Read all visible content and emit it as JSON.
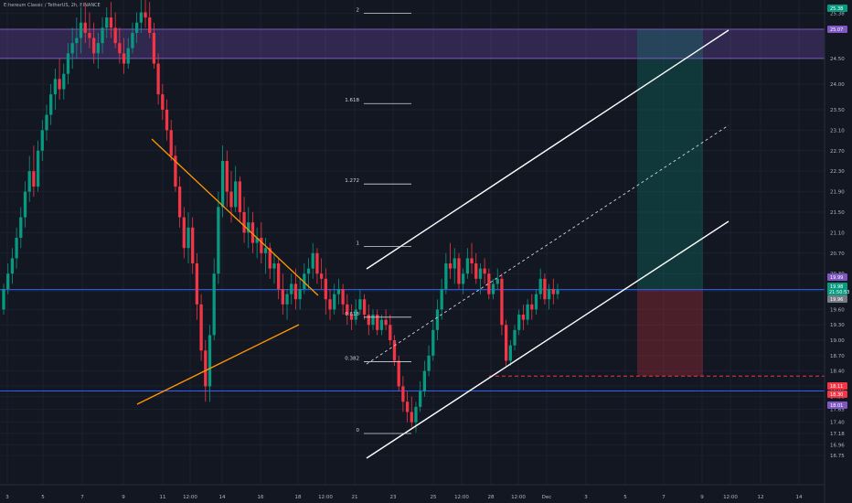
{
  "chart_title": "Ethereum Classic / TetherUS, 2h, BINANCE",
  "currency": "USDT",
  "chart_data": {
    "type": "candlestick",
    "title": "Ethereum Classic / TetherUS, 2h, BINANCE",
    "ylim": [
      16.75,
      25.5
    ],
    "y_ticks": [
      25.38,
      25.07,
      24.5,
      24.0,
      23.5,
      23.1,
      22.7,
      22.3,
      21.9,
      21.5,
      21.1,
      20.7,
      20.3,
      19.99,
      19.98,
      19.96,
      19.6,
      19.3,
      19.0,
      18.7,
      18.4,
      18.11,
      18.01,
      17.9,
      17.65,
      17.4,
      17.18,
      16.96,
      16.75
    ],
    "x_ticks": [
      "3",
      "5",
      "7",
      "9",
      "11",
      "12:00",
      "14",
      "16",
      "18",
      "12:00",
      "21",
      "23",
      "25",
      "12:00",
      "28",
      "12:00",
      "Dec",
      "3",
      "5",
      "7",
      "9",
      "12:00",
      "12",
      "14"
    ],
    "price_badges": [
      {
        "value": "25.38",
        "color": "#089981"
      },
      {
        "value": "25.07",
        "color": "#7e57c2"
      },
      {
        "value": "19.99",
        "color": "#7e57c2"
      },
      {
        "value": "19.98",
        "sub": "21:50:53",
        "color": "#089981"
      },
      {
        "value": "19.96",
        "color": "#787b86"
      },
      {
        "value": "18.11",
        "color": "#f23645"
      },
      {
        "value": "18.30",
        "color": "#f23645"
      },
      {
        "value": "18.01",
        "color": "#7e57c2"
      }
    ],
    "fib_levels": [
      {
        "label": "2",
        "value": 25.38
      },
      {
        "label": "1.618",
        "value": 23.62
      },
      {
        "label": "1.272",
        "value": 22.05
      },
      {
        "label": "1",
        "value": 20.83
      },
      {
        "label": "0.618",
        "value": 19.45
      },
      {
        "label": "0.382",
        "value": 18.58
      },
      {
        "label": "0",
        "value": 17.18
      }
    ],
    "horizontal_lines": [
      {
        "value": 25.07,
        "color": "#7e57c2"
      },
      {
        "value": 24.5,
        "color": "#7e57c2"
      },
      {
        "value": 19.99,
        "color": "#2962ff"
      },
      {
        "value": 18.01,
        "color": "#2962ff"
      },
      {
        "value": 18.3,
        "color": "#f23645",
        "style": "dashed"
      }
    ],
    "purple_zone": [
      24.5,
      25.07
    ],
    "position": {
      "entry": 19.99,
      "target": 25.07,
      "stop": 18.3
    },
    "candles_2h": [
      [
        19.6,
        20.1,
        19.5,
        20.0
      ],
      [
        20.0,
        20.5,
        19.9,
        20.3
      ],
      [
        20.3,
        20.8,
        20.1,
        20.6
      ],
      [
        20.6,
        21.2,
        20.4,
        21.0
      ],
      [
        21.0,
        21.6,
        20.8,
        21.4
      ],
      [
        21.4,
        22.1,
        21.2,
        21.9
      ],
      [
        21.9,
        22.6,
        21.7,
        22.3
      ],
      [
        22.3,
        22.8,
        21.8,
        22.0
      ],
      [
        22.0,
        22.9,
        21.9,
        22.7
      ],
      [
        22.7,
        23.3,
        22.5,
        23.1
      ],
      [
        23.1,
        23.6,
        22.9,
        23.4
      ],
      [
        23.4,
        24.0,
        23.2,
        23.8
      ],
      [
        23.8,
        24.3,
        23.5,
        24.1
      ],
      [
        24.1,
        24.5,
        23.7,
        23.9
      ],
      [
        23.9,
        24.4,
        23.7,
        24.2
      ],
      [
        24.2,
        24.8,
        24.0,
        24.6
      ],
      [
        24.6,
        25.1,
        24.3,
        24.8
      ],
      [
        24.8,
        25.3,
        24.5,
        24.9
      ],
      [
        24.9,
        25.5,
        24.6,
        25.2
      ],
      [
        25.2,
        25.6,
        24.8,
        25.0
      ],
      [
        25.0,
        25.4,
        24.7,
        24.9
      ],
      [
        24.9,
        25.2,
        24.4,
        24.6
      ],
      [
        24.6,
        25.0,
        24.3,
        24.8
      ],
      [
        24.8,
        25.3,
        24.6,
        25.1
      ],
      [
        25.1,
        25.5,
        24.9,
        25.3
      ],
      [
        25.3,
        25.6,
        24.9,
        25.1
      ],
      [
        25.1,
        25.4,
        24.7,
        24.8
      ],
      [
        24.8,
        25.1,
        24.4,
        24.6
      ],
      [
        24.6,
        24.9,
        24.2,
        24.4
      ],
      [
        24.4,
        24.9,
        24.3,
        24.7
      ],
      [
        24.7,
        25.2,
        24.6,
        25.0
      ],
      [
        25.0,
        25.4,
        24.8,
        25.2
      ],
      [
        25.2,
        25.7,
        25.0,
        25.4
      ],
      [
        25.4,
        25.8,
        25.1,
        25.3
      ],
      [
        25.3,
        25.6,
        24.9,
        25.0
      ],
      [
        25.0,
        25.2,
        24.3,
        24.4
      ],
      [
        24.4,
        24.6,
        23.6,
        23.8
      ],
      [
        23.8,
        24.0,
        23.3,
        23.5
      ],
      [
        23.5,
        23.7,
        22.9,
        23.1
      ],
      [
        23.1,
        23.3,
        22.5,
        22.6
      ],
      [
        22.6,
        22.8,
        21.9,
        22.0
      ],
      [
        22.0,
        22.2,
        21.2,
        21.4
      ],
      [
        21.4,
        21.6,
        20.6,
        20.8
      ],
      [
        20.8,
        21.5,
        20.5,
        21.2
      ],
      [
        21.2,
        21.4,
        20.3,
        20.5
      ],
      [
        20.5,
        20.7,
        19.4,
        19.7
      ],
      [
        19.7,
        19.9,
        18.6,
        18.8
      ],
      [
        18.8,
        19.0,
        17.8,
        18.1
      ],
      [
        18.1,
        19.3,
        17.8,
        19.1
      ],
      [
        19.1,
        20.6,
        19.0,
        20.3
      ],
      [
        20.3,
        21.9,
        20.1,
        21.6
      ],
      [
        21.6,
        22.8,
        21.4,
        22.5
      ],
      [
        22.5,
        22.7,
        21.6,
        21.9
      ],
      [
        21.9,
        22.3,
        21.3,
        21.6
      ],
      [
        21.6,
        22.4,
        21.5,
        22.1
      ],
      [
        22.1,
        22.2,
        21.3,
        21.5
      ],
      [
        21.5,
        21.8,
        20.9,
        21.1
      ],
      [
        21.1,
        21.6,
        20.8,
        21.3
      ],
      [
        21.3,
        21.5,
        20.7,
        20.9
      ],
      [
        20.9,
        21.2,
        20.6,
        21.0
      ],
      [
        21.0,
        21.3,
        20.5,
        20.7
      ],
      [
        20.7,
        21.0,
        20.3,
        20.8
      ],
      [
        20.8,
        20.9,
        20.2,
        20.4
      ],
      [
        20.4,
        20.7,
        20.1,
        20.5
      ],
      [
        20.5,
        20.6,
        19.8,
        20.0
      ],
      [
        20.0,
        20.3,
        19.5,
        19.7
      ],
      [
        19.7,
        20.0,
        19.4,
        19.9
      ],
      [
        19.9,
        20.3,
        19.7,
        20.1
      ],
      [
        20.1,
        20.4,
        19.6,
        19.8
      ],
      [
        19.8,
        20.2,
        19.6,
        20.0
      ],
      [
        20.0,
        20.5,
        19.9,
        20.3
      ],
      [
        20.3,
        20.6,
        20.0,
        20.4
      ],
      [
        20.4,
        20.9,
        20.2,
        20.7
      ],
      [
        20.7,
        20.8,
        20.1,
        20.3
      ],
      [
        20.3,
        20.6,
        20.0,
        20.2
      ],
      [
        20.2,
        20.4,
        19.5,
        19.8
      ],
      [
        19.8,
        20.0,
        19.4,
        19.6
      ],
      [
        19.6,
        20.1,
        19.5,
        19.9
      ],
      [
        19.9,
        20.2,
        19.7,
        20.0
      ],
      [
        20.0,
        20.1,
        19.5,
        19.7
      ],
      [
        19.7,
        19.9,
        19.3,
        19.5
      ],
      [
        19.5,
        19.7,
        19.2,
        19.4
      ],
      [
        19.4,
        19.8,
        19.3,
        19.6
      ],
      [
        19.6,
        20.0,
        19.5,
        19.8
      ],
      [
        19.8,
        19.9,
        19.4,
        19.5
      ],
      [
        19.5,
        19.7,
        19.1,
        19.3
      ],
      [
        19.3,
        19.6,
        19.2,
        19.5
      ],
      [
        19.5,
        19.6,
        19.1,
        19.2
      ],
      [
        19.2,
        19.5,
        19.1,
        19.4
      ],
      [
        19.4,
        19.6,
        19.2,
        19.3
      ],
      [
        19.3,
        19.5,
        18.9,
        19.0
      ],
      [
        19.0,
        19.1,
        18.5,
        18.6
      ],
      [
        18.6,
        18.7,
        18.0,
        18.1
      ],
      [
        18.1,
        18.3,
        17.6,
        17.8
      ],
      [
        17.8,
        18.0,
        17.4,
        17.6
      ],
      [
        17.6,
        17.9,
        17.3,
        17.4
      ],
      [
        17.4,
        17.8,
        17.2,
        17.7
      ],
      [
        17.7,
        18.2,
        17.6,
        18.0
      ],
      [
        18.0,
        18.6,
        17.9,
        18.4
      ],
      [
        18.4,
        18.9,
        18.3,
        18.7
      ],
      [
        18.7,
        19.4,
        18.6,
        19.2
      ],
      [
        19.2,
        19.8,
        19.0,
        19.6
      ],
      [
        19.6,
        20.2,
        19.4,
        20.0
      ],
      [
        20.0,
        20.7,
        19.9,
        20.5
      ],
      [
        20.5,
        20.9,
        20.2,
        20.4
      ],
      [
        20.4,
        20.8,
        20.1,
        20.6
      ],
      [
        20.6,
        20.7,
        20.0,
        20.1
      ],
      [
        20.1,
        20.4,
        19.9,
        20.3
      ],
      [
        20.3,
        20.8,
        20.2,
        20.6
      ],
      [
        20.6,
        20.9,
        20.3,
        20.5
      ],
      [
        20.5,
        20.7,
        20.1,
        20.2
      ],
      [
        20.2,
        20.5,
        19.9,
        20.4
      ],
      [
        20.4,
        20.6,
        20.1,
        20.3
      ],
      [
        20.3,
        20.4,
        19.8,
        19.9
      ],
      [
        19.9,
        20.2,
        19.8,
        20.1
      ],
      [
        20.1,
        20.4,
        20.0,
        20.2
      ],
      [
        20.2,
        20.3,
        19.1,
        19.3
      ],
      [
        19.3,
        19.4,
        18.5,
        18.6
      ],
      [
        18.6,
        19.0,
        18.5,
        18.9
      ],
      [
        18.9,
        19.3,
        18.8,
        19.2
      ],
      [
        19.2,
        19.6,
        19.1,
        19.5
      ],
      [
        19.5,
        19.7,
        19.2,
        19.4
      ],
      [
        19.4,
        19.8,
        19.3,
        19.7
      ],
      [
        19.7,
        19.9,
        19.4,
        19.6
      ],
      [
        19.6,
        20.0,
        19.5,
        19.9
      ],
      [
        19.9,
        20.4,
        19.8,
        20.2
      ],
      [
        20.2,
        20.3,
        19.7,
        19.8
      ],
      [
        19.8,
        20.1,
        19.6,
        20.0
      ],
      [
        20.0,
        20.2,
        19.7,
        19.9
      ],
      [
        19.9,
        20.1,
        19.8,
        19.98
      ]
    ]
  }
}
